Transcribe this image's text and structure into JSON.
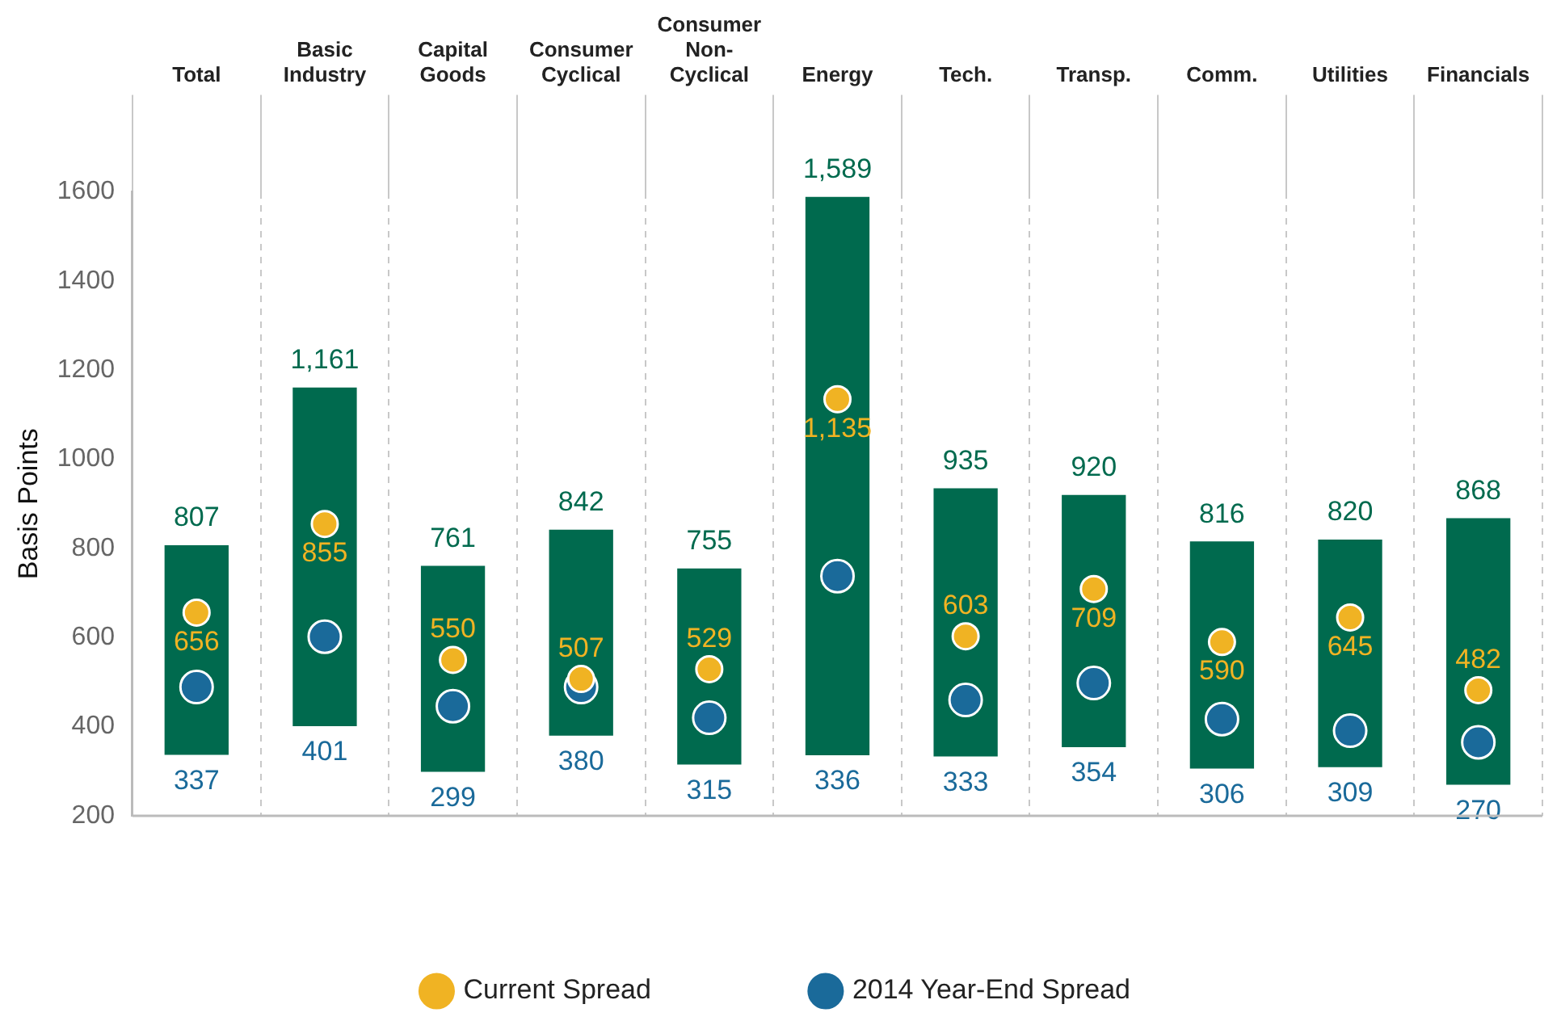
{
  "chart_data": {
    "type": "bar",
    "ylabel": "Basis Points",
    "categories": [
      "Total",
      "Basic Industry",
      "Capital Goods",
      "Consumer Cyclical",
      "Consumer Non-Cyclical",
      "Energy",
      "Tech.",
      "Transp.",
      "Comm.",
      "Utilities",
      "Financials"
    ],
    "series": [
      {
        "color": "#006a4e",
        "base": [
          337,
          401,
          299,
          380,
          315,
          336,
          333,
          354,
          306,
          309,
          270
        ],
        "values": [
          470,
          760,
          462,
          462,
          440,
          1253,
          602,
          566,
          510,
          511,
          598
        ]
      },
      {
        "type": "scatter",
        "name": "Current Spread",
        "color": "#f0b323",
        "values": [
          656,
          855,
          550,
          507,
          529,
          1135,
          603,
          709,
          590,
          645,
          482
        ],
        "value_labels": [
          "656",
          "855",
          "550",
          "507",
          "529",
          "1,135",
          "603",
          "709",
          "590",
          "645",
          "482"
        ]
      },
      {
        "type": "scatter",
        "name": "2014 Year-End Spread",
        "color": "#1a6a9a",
        "values": [
          489,
          602,
          446,
          489,
          420,
          738,
          460,
          498,
          417,
          391,
          365
        ]
      }
    ],
    "annotations": [
      "807",
      "337",
      "1,161",
      "401",
      "761",
      "299",
      "842",
      "380",
      "755",
      "315",
      "1,589",
      "336",
      "935",
      "333",
      "920",
      "354",
      "816",
      "306",
      "820",
      "309",
      "868",
      "270"
    ],
    "ylim": [
      200,
      1600
    ],
    "yticks": [
      200,
      400,
      600,
      800,
      1000,
      1200,
      1400,
      1600
    ],
    "grid": "x",
    "legend": "bottom",
    "marker": "circle"
  }
}
